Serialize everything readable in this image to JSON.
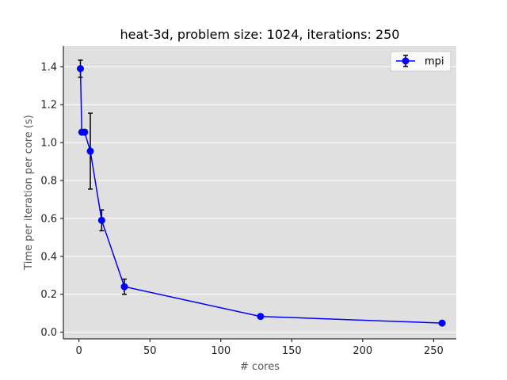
{
  "chart_data": {
    "type": "line",
    "title": "heat-3d, problem size: 1024, iterations: 250",
    "xlabel": "# cores",
    "ylabel": "Time per iteration per core (s)",
    "xlim": [
      -11,
      266
    ],
    "ylim": [
      -0.035,
      1.51
    ],
    "xticks": [
      0,
      50,
      100,
      150,
      200,
      250
    ],
    "yticks": [
      0.0,
      0.2,
      0.4,
      0.6,
      0.8,
      1.0,
      1.2,
      1.4
    ],
    "x_tick_labels": [
      "0",
      "50",
      "100",
      "150",
      "200",
      "250"
    ],
    "y_tick_labels": [
      "0.0",
      "0.2",
      "0.4",
      "0.6",
      "0.8",
      "1.0",
      "1.2",
      "1.4"
    ],
    "grid": true,
    "legend_position": "upper right",
    "background_color": "#e0e0e0",
    "series": [
      {
        "name": "mpi",
        "color": "#0000ff",
        "x": [
          1,
          2,
          4,
          8,
          16,
          32,
          128,
          256
        ],
        "y": [
          1.39,
          1.055,
          1.055,
          0.955,
          0.59,
          0.24,
          0.083,
          0.048
        ],
        "err_low": [
          0.045,
          0.0,
          0.0,
          0.2,
          0.055,
          0.04,
          0.0,
          0.0
        ],
        "err_high": [
          0.045,
          0.0,
          0.0,
          0.2,
          0.055,
          0.04,
          0.0,
          0.0
        ]
      }
    ]
  }
}
